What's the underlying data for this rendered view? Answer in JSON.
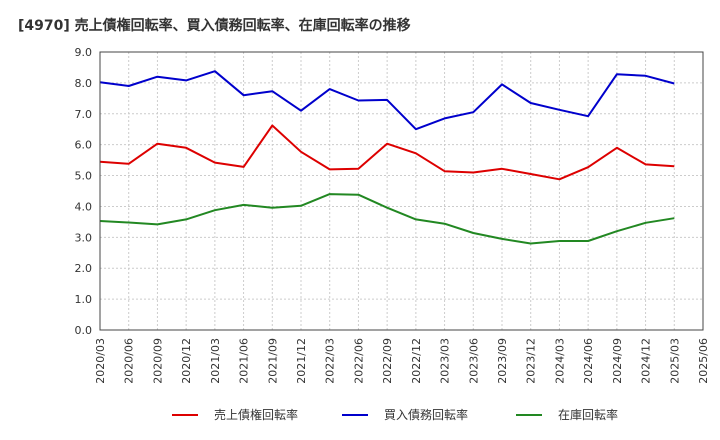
{
  "chart_data": {
    "type": "line",
    "title": "[4970]  売上債権回転率、買入債務回転率、在庫回転率の推移",
    "xlabel": "",
    "ylabel": "",
    "ylim": [
      0,
      9
    ],
    "yticks": [
      "0.0",
      "1.0",
      "2.0",
      "3.0",
      "4.0",
      "5.0",
      "6.0",
      "7.0",
      "8.0",
      "9.0"
    ],
    "grid": true,
    "legend_position": "bottom",
    "categories": [
      "2020/03",
      "2020/06",
      "2020/09",
      "2020/12",
      "2021/03",
      "2021/06",
      "2021/09",
      "2021/12",
      "2022/03",
      "2022/06",
      "2022/09",
      "2022/12",
      "2023/03",
      "2023/06",
      "2023/09",
      "2023/12",
      "2024/03",
      "2024/06",
      "2024/09",
      "2024/12",
      "2025/03",
      "2025/06"
    ],
    "series": [
      {
        "name": "売上債権回転率",
        "color": "#dd0000",
        "values": [
          5.45,
          5.38,
          6.03,
          5.9,
          5.42,
          5.28,
          6.62,
          5.77,
          5.2,
          5.22,
          6.03,
          5.72,
          5.14,
          5.1,
          5.22,
          5.05,
          4.88,
          5.27,
          5.9,
          5.36,
          5.3,
          null
        ]
      },
      {
        "name": "買入債務回転率",
        "color": "#0000cc",
        "values": [
          8.02,
          7.9,
          8.2,
          8.08,
          8.38,
          7.6,
          7.73,
          7.1,
          7.8,
          7.43,
          7.45,
          6.5,
          6.85,
          7.05,
          7.95,
          7.35,
          7.13,
          6.92,
          8.28,
          8.23,
          7.98,
          null
        ]
      },
      {
        "name": "在庫回転率",
        "color": "#228822",
        "values": [
          3.53,
          3.48,
          3.42,
          3.58,
          3.88,
          4.05,
          3.96,
          4.02,
          4.4,
          4.38,
          3.96,
          3.58,
          3.44,
          3.14,
          2.95,
          2.8,
          2.88,
          2.88,
          3.2,
          3.47,
          3.62,
          null
        ]
      }
    ]
  }
}
